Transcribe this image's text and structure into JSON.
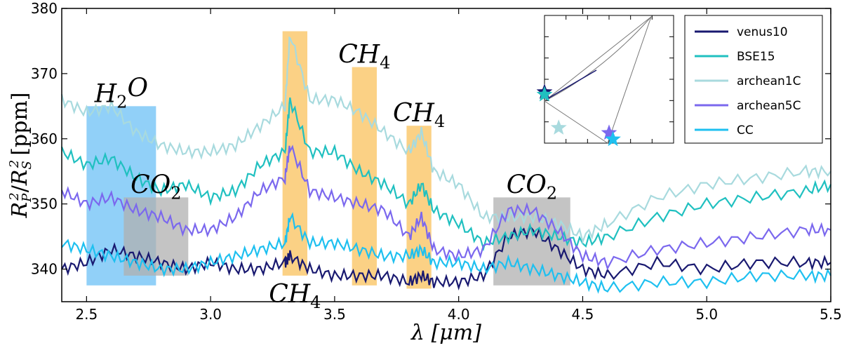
{
  "chart_data": {
    "type": "line",
    "xlabel": "λ [μm]",
    "ylabel": "R_P^2 / R_S^2 [ppm]",
    "xlim": [
      2.4,
      5.5
    ],
    "ylim": [
      335,
      380
    ],
    "xticks": [
      "2.5",
      "3.0",
      "3.5",
      "4.0",
      "4.5",
      "5.0",
      "5.5"
    ],
    "yticks": [
      "340",
      "350",
      "360",
      "370",
      "380"
    ],
    "x": [
      2.4,
      2.5,
      2.6,
      2.7,
      2.8,
      2.9,
      3.0,
      3.1,
      3.2,
      3.3,
      3.32,
      3.4,
      3.5,
      3.6,
      3.7,
      3.8,
      3.85,
      3.9,
      4.0,
      4.1,
      4.2,
      4.3,
      4.4,
      4.5,
      4.6,
      4.8,
      5.0,
      5.2,
      5.4,
      5.5
    ],
    "series": [
      {
        "name": "venus10",
        "color": "#191970",
        "values": [
          340,
          341,
          343,
          342,
          341,
          340,
          341,
          340,
          340,
          341,
          342,
          340,
          339,
          339,
          339,
          338,
          339,
          338,
          338,
          339,
          345,
          346,
          343,
          340,
          339,
          341,
          340,
          341,
          341,
          341
        ]
      },
      {
        "name": "BSE15",
        "color": "#20c0c0",
        "values": [
          358,
          356,
          357,
          354,
          352,
          353,
          351,
          352,
          356,
          358,
          366,
          358,
          358,
          355,
          353,
          350,
          353,
          349,
          347,
          344,
          345,
          346,
          345,
          344,
          345,
          348,
          350,
          351,
          352,
          353
        ]
      },
      {
        "name": "archean1C",
        "color": "#a8dade",
        "values": [
          366,
          364,
          365,
          361,
          359,
          358,
          358,
          359,
          362,
          365,
          376,
          366,
          366,
          364,
          361,
          358,
          361,
          355,
          353,
          348,
          348,
          348,
          347,
          345,
          347,
          351,
          353,
          354,
          355,
          355
        ]
      },
      {
        "name": "archean5C",
        "color": "#7b68ee",
        "values": [
          352,
          350,
          351,
          349,
          348,
          346,
          346,
          348,
          352,
          354,
          359,
          352,
          351,
          350,
          349,
          345,
          348,
          343,
          342,
          343,
          349,
          349,
          346,
          342,
          341,
          343,
          344,
          345,
          346,
          346
        ]
      },
      {
        "name": "CC",
        "color": "#1ec0f0",
        "values": [
          344,
          343,
          342,
          341,
          340,
          340,
          341,
          342,
          343,
          344,
          348,
          344,
          344,
          343,
          342,
          342,
          343,
          341,
          341,
          340,
          341,
          340,
          339,
          338,
          337,
          338,
          338,
          339,
          339,
          339
        ]
      }
    ],
    "bands": [
      {
        "label": "H",
        "sub": "2",
        "tail": "O",
        "x0": 2.5,
        "x1": 2.78,
        "y0": 337.5,
        "y1": 365,
        "color": "#6cc0f5"
      },
      {
        "label": "CO",
        "sub": "2",
        "tail": "",
        "x0": 2.65,
        "x1": 2.91,
        "y0": 339,
        "y1": 351,
        "color": "#b0b0b0"
      },
      {
        "label": "CH",
        "sub": "4",
        "tail": "",
        "x0": 3.29,
        "x1": 3.39,
        "y0": 339,
        "y1": 376.5,
        "color": "#f9c15c"
      },
      {
        "label": "CH",
        "sub": "4",
        "tail": "",
        "x0": 3.57,
        "x1": 3.67,
        "y0": 337.5,
        "y1": 371,
        "color": "#f9c15c"
      },
      {
        "label": "CH",
        "sub": "4",
        "tail": "",
        "x0": 3.79,
        "x1": 3.89,
        "y0": 337,
        "y1": 362,
        "color": "#f9c15c"
      },
      {
        "label": "CO",
        "sub": "2",
        "tail": "",
        "x0": 4.14,
        "x1": 4.45,
        "y0": 337.5,
        "y1": 351,
        "color": "#b0b0b0"
      }
    ],
    "legend_placement": "top-right",
    "inset": {
      "markers": [
        {
          "series": "venus10",
          "color": "#191970",
          "tx": 0.0,
          "ty": 0.6
        },
        {
          "series": "BSE15",
          "color": "#20c0c0",
          "tx": 0.0,
          "ty": 0.62
        },
        {
          "series": "archean1C",
          "color": "#a8dade",
          "tx": 0.11,
          "ty": 0.88
        },
        {
          "series": "archean5C",
          "color": "#7b68ee",
          "tx": 0.5,
          "ty": 0.92
        },
        {
          "series": "CC",
          "color": "#1ec0f0",
          "tx": 0.53,
          "ty": 0.97
        }
      ]
    }
  }
}
